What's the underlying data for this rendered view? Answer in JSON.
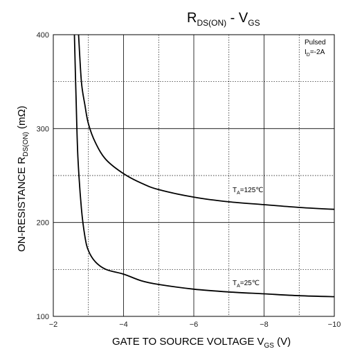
{
  "chart_data": {
    "type": "line",
    "title": {
      "main": "R",
      "sub1": "DS(ON)",
      "sep": " - V",
      "sub2": "GS"
    },
    "xlabel": {
      "main": "GATE TO SOURCE VOLTAGE V",
      "sub": "GS",
      "unit": " (V)"
    },
    "ylabel": {
      "main": "ON-RESISTANCE R",
      "sub": "DS(ON)",
      "unit": " (mΩ)"
    },
    "xlim": [
      -2,
      -10
    ],
    "ylim": [
      100,
      400
    ],
    "x_ticks": [
      "−2",
      "−4",
      "−6",
      "−8",
      "−10"
    ],
    "x_tick_values": [
      -2,
      -4,
      -6,
      -8,
      -10
    ],
    "y_ticks": [
      "100",
      "200",
      "300",
      "400"
    ],
    "y_tick_values": [
      100,
      200,
      300,
      400
    ],
    "grid": {
      "major": "solid",
      "minor": "dotted"
    },
    "annotation": {
      "line1": "Pulsed",
      "line2_main": "I",
      "line2_sub": "D",
      "line2_rest": "=-2A"
    },
    "series": [
      {
        "label_main": "T",
        "label_sub": "A",
        "label_rest": "=125℃",
        "x": [
          -2.72,
          -2.8,
          -2.9,
          -3.0,
          -3.2,
          -3.5,
          -4.0,
          -4.5,
          -5.0,
          -6.0,
          -7.0,
          -8.0,
          -9.0,
          -10.0
        ],
        "y": [
          400,
          350,
          325,
          305,
          285,
          267,
          252,
          242,
          235,
          227,
          222,
          219,
          216,
          214
        ]
      },
      {
        "label_main": "T",
        "label_sub": "A",
        "label_rest": "=25℃",
        "x": [
          -2.6,
          -2.65,
          -2.7,
          -2.8,
          -2.9,
          -3.0,
          -3.2,
          -3.5,
          -4.0,
          -4.5,
          -5.0,
          -6.0,
          -7.0,
          -8.0,
          -9.0,
          -10.0
        ],
        "y": [
          400,
          330,
          270,
          215,
          185,
          170,
          158,
          150,
          145,
          138,
          134,
          129,
          126,
          124,
          122,
          121
        ]
      }
    ]
  }
}
